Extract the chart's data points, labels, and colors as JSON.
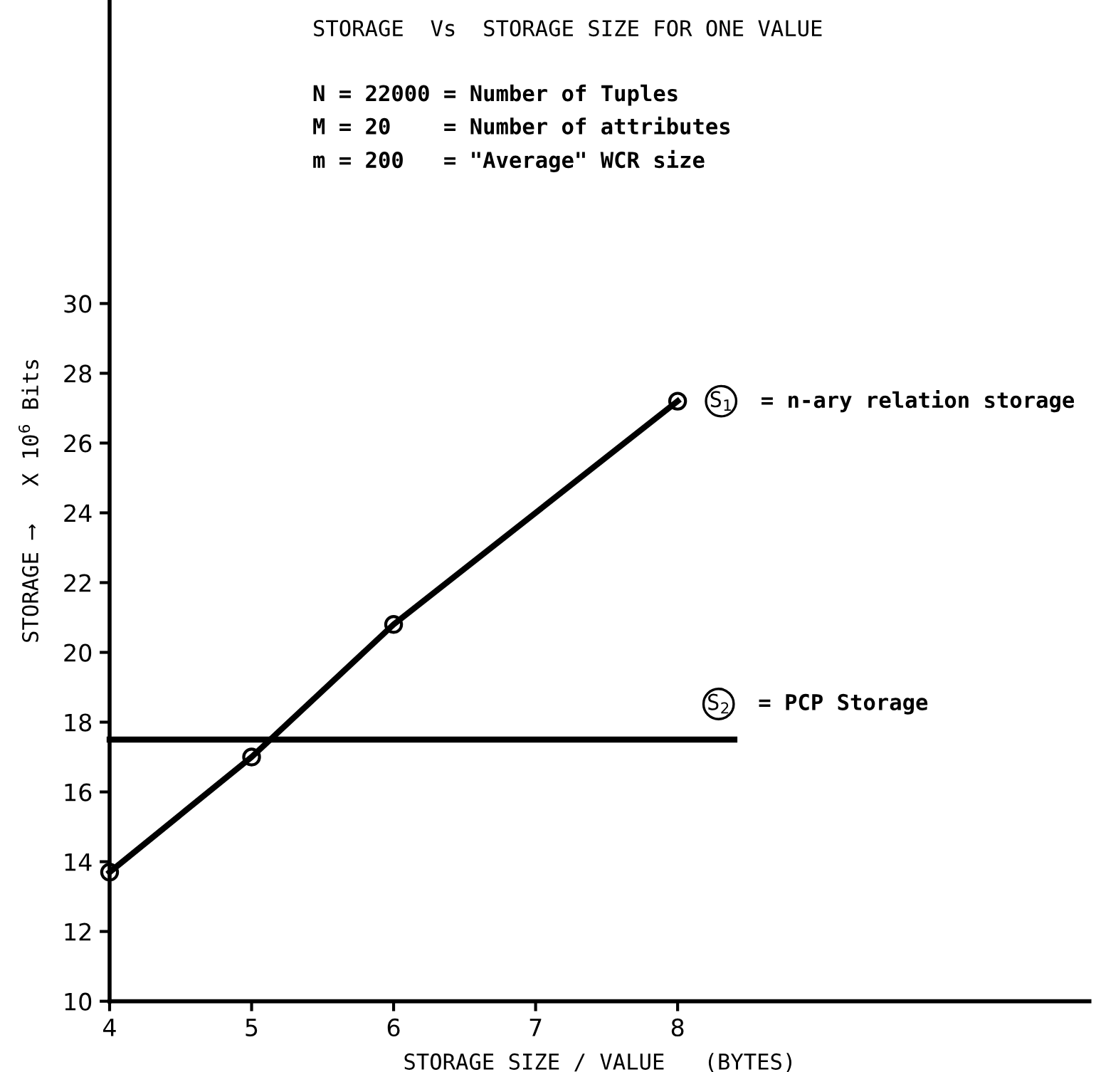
{
  "chart_data": {
    "type": "line",
    "title": "STORAGE  Vs  STORAGE SIZE FOR ONE VALUE",
    "xlabel": "STORAGE SIZE / VALUE   (BYTES)",
    "ylabel": "STORAGE ⟶   X 10$^{6}$ Bits",
    "series": [
      {
        "name": "S$_{1}$",
        "color": "#000000",
        "marker": "circle",
        "x": [
          4,
          5,
          6,
          8
        ],
        "values": [
          13.7,
          17.0,
          20.8,
          27.2
        ]
      },
      {
        "name": "S$_{2}$",
        "color": "#000000",
        "marker": "none",
        "x": [
          4,
          8.4
        ],
        "values": [
          17.5,
          17.5
        ]
      }
    ],
    "annotations": [
      "N = 22000 = Number of Tuples",
      "M = 20    = Number of attributes",
      "m = 200   = \"Average\" WCR size",
      "= n-ary relation storage",
      "= PCP Storage"
    ],
    "xlim": [
      4,
      10.9
    ],
    "ylim": [
      10,
      38.7
    ],
    "xticks": [
      4,
      5,
      6,
      7,
      8
    ],
    "yticks": [
      10,
      12,
      14,
      16,
      18,
      20,
      22,
      24,
      26,
      28,
      30
    ],
    "grid": false,
    "legend": false
  }
}
